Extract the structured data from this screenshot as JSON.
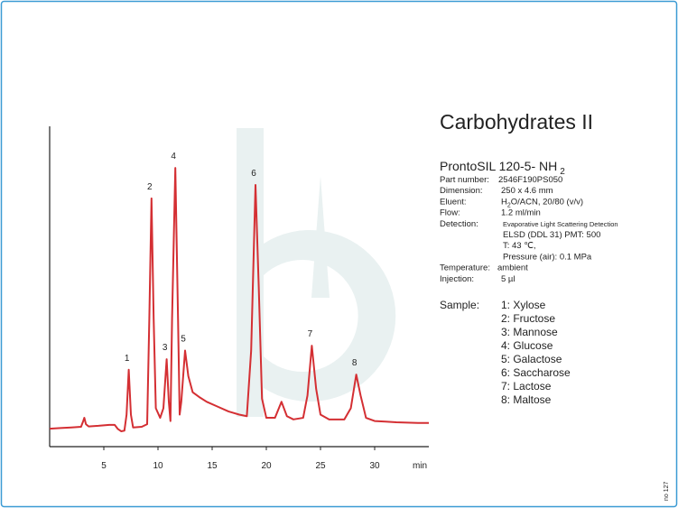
{
  "chart_data": {
    "type": "line",
    "color": "#d42f33",
    "x_label": "min",
    "xlim": [
      0,
      35
    ],
    "ylim": [
      0,
      100
    ],
    "xticks": [
      5,
      10,
      15,
      20,
      25,
      30
    ],
    "x": [
      0,
      1,
      2,
      2.9,
      3.1,
      3.2,
      3.35,
      3.6,
      4.5,
      5.5,
      6.0,
      6.3,
      6.6,
      6.9,
      7.1,
      7.3,
      7.5,
      7.7,
      8.5,
      9.0,
      9.2,
      9.4,
      9.6,
      9.8,
      10.2,
      10.5,
      10.8,
      11.0,
      11.15,
      11.3,
      11.6,
      11.85,
      12.0,
      12.15,
      12.5,
      12.8,
      13.2,
      13.8,
      14.5,
      15.5,
      16.5,
      17.5,
      18.2,
      18.6,
      19.0,
      19.3,
      19.6,
      20.0,
      20.8,
      21.4,
      21.9,
      22.5,
      23.4,
      23.8,
      24.2,
      24.6,
      25.0,
      25.8,
      27.2,
      27.8,
      28.3,
      28.7,
      29.2,
      30,
      31,
      32,
      33,
      34,
      35
    ],
    "values": [
      5.6,
      5.8,
      6.0,
      6.2,
      8,
      9,
      7,
      6.3,
      6.5,
      6.8,
      6.8,
      5.5,
      4.8,
      5,
      10,
      24,
      10,
      6,
      6.2,
      7,
      40,
      77.5,
      40,
      12,
      9,
      12,
      27.3,
      14,
      8,
      40,
      87,
      40,
      10,
      14,
      30,
      22,
      17,
      15.5,
      14,
      12.5,
      11,
      10,
      9.5,
      30,
      81.7,
      50,
      15,
      9,
      9,
      14,
      9.5,
      8.5,
      9,
      16,
      31.5,
      18,
      10,
      8.5,
      8.5,
      12,
      22.5,
      16,
      9,
      8,
      7.8,
      7.6,
      7.5,
      7.4,
      7.4
    ],
    "annotations": [
      {
        "text": "1",
        "x": 7.3,
        "y": 24
      },
      {
        "text": "2",
        "x": 9.4,
        "y": 77.5
      },
      {
        "text": "3",
        "x": 10.8,
        "y": 27.3
      },
      {
        "text": "4",
        "x": 11.6,
        "y": 87
      },
      {
        "text": "5",
        "x": 12.5,
        "y": 30
      },
      {
        "text": "6",
        "x": 19.0,
        "y": 81.7
      },
      {
        "text": "7",
        "x": 24.2,
        "y": 31.5
      },
      {
        "text": "8",
        "x": 28.3,
        "y": 22.5
      }
    ]
  },
  "info": {
    "title": "Carbohydrates II",
    "column": "ProntoSIL 120-5- NH",
    "column_sub": "2",
    "rows": [
      {
        "label": "Part number:",
        "value": "2546F190PS050"
      },
      {
        "label": "Dimension:",
        "value": "250 x 4.6 mm"
      },
      {
        "label": "Eluent:",
        "value": "H",
        "sub": "2",
        "rest": "O/ACN, 20/80 (v/v)"
      },
      {
        "label": "Flow:",
        "value": "1.2 ml/min"
      },
      {
        "label": "Detection:",
        "value": "Evaporative Light Scattering Detection",
        "more": [
          "ELSD (DDL 31) PMT: 500",
          "T: 43 ℃,",
          "Pressure (air): 0.1 MPa"
        ]
      },
      {
        "label": "Temperature:",
        "value": "ambient"
      },
      {
        "label": "Injection:",
        "value": "5 µl"
      }
    ],
    "sample_label": "Sample:",
    "samples": [
      "1: Xylose",
      "2: Fructose",
      "3: Mannose",
      "4: Glucose",
      "5: Galactose",
      "6: Saccharose",
      "7: Lactose",
      "8: Maltose"
    ],
    "code": "no 127"
  }
}
